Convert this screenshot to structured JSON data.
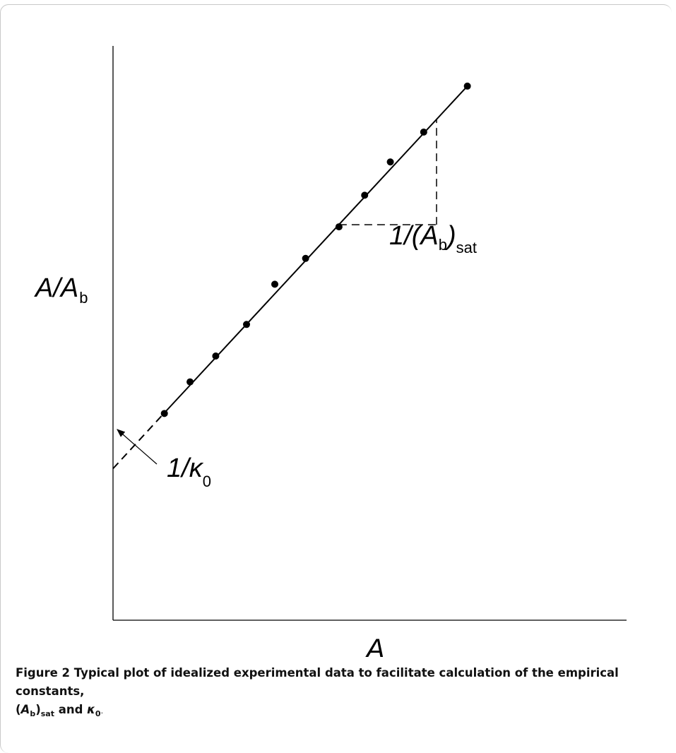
{
  "chart_data": {
    "type": "scatter",
    "title": "",
    "xlabel": "A",
    "ylabel_main": "A/A",
    "ylabel_sub": "b",
    "grid": false,
    "legend": "none",
    "xlim": [
      0,
      10
    ],
    "ylim": [
      0,
      10
    ],
    "points": [
      {
        "x": 1.0,
        "y": 3.6
      },
      {
        "x": 1.5,
        "y": 4.15
      },
      {
        "x": 2.0,
        "y": 4.6
      },
      {
        "x": 2.6,
        "y": 5.15
      },
      {
        "x": 3.15,
        "y": 5.85
      },
      {
        "x": 3.75,
        "y": 6.3
      },
      {
        "x": 4.4,
        "y": 6.85
      },
      {
        "x": 4.9,
        "y": 7.4
      },
      {
        "x": 5.4,
        "y": 7.98
      },
      {
        "x": 6.05,
        "y": 8.5
      },
      {
        "x": 6.9,
        "y": 9.3
      }
    ],
    "fit_line": {
      "x0": 1.0,
      "y0": 3.61,
      "x1": 6.9,
      "y1": 9.3,
      "intercept": 2.64
    },
    "annotations": {
      "intercept_main": "1/κ",
      "intercept_sub": "0",
      "slope_main": "1/(A",
      "slope_sub1": "b",
      "slope_close": ")",
      "slope_sub2": "sat"
    },
    "slope_triangle": {
      "x_start": 4.4,
      "x_end": 6.3
    }
  },
  "caption": {
    "figure_label": "Figure 2",
    "text1": " Typical plot of idealized experimental data to facilitate calculation of the empirical constants,",
    "open_paren": "(",
    "A": "A",
    "sub_b": "b",
    "close_paren": ")",
    "sub_sat": "sat",
    "and_text": " and ",
    "kappa": "κ",
    "sub_0": "0",
    "end": "."
  }
}
